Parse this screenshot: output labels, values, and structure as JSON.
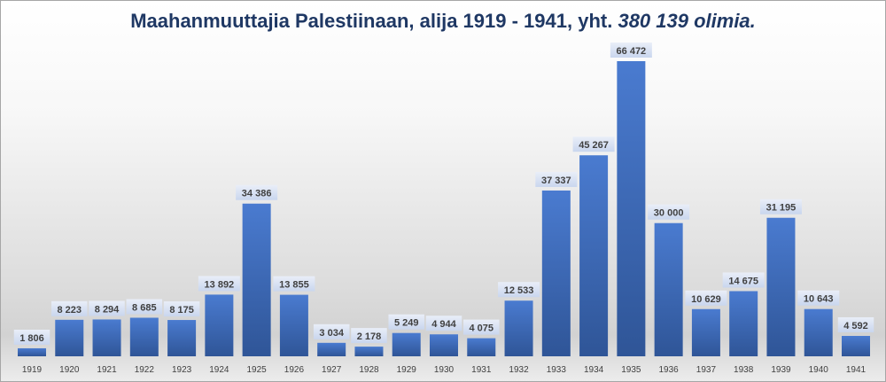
{
  "chart_data": {
    "type": "bar",
    "title": "Maahanmuuttajia Palestiinaan, alija 1919 - 1941, yht.",
    "title_emphasis": "380 139 olimia.",
    "xlabel": "",
    "ylabel": "",
    "ylim": [
      0,
      66472
    ],
    "grid": false,
    "categories": [
      "1919",
      "1920",
      "1921",
      "1922",
      "1923",
      "1924",
      "1925",
      "1926",
      "1927",
      "1928",
      "1929",
      "1930",
      "1931",
      "1932",
      "1933",
      "1934",
      "1935",
      "1936",
      "1937",
      "1938",
      "1939",
      "1940",
      "1941"
    ],
    "values": [
      1806,
      8223,
      8294,
      8685,
      8175,
      13892,
      34386,
      13855,
      3034,
      2178,
      5249,
      4944,
      4075,
      12533,
      37337,
      45267,
      66472,
      30000,
      10629,
      14675,
      31195,
      10643,
      4592
    ],
    "data_labels": [
      "1 806",
      "8 223",
      "8 294",
      "8 685",
      "8 175",
      "13 892",
      "34 386",
      "13 855",
      "3 034",
      "2 178",
      "5 249",
      "4 944",
      "4 075",
      "12 533",
      "37 337",
      "45 267",
      "66 472",
      "30 000",
      "10 629",
      "14 675",
      "31 195",
      "10 643",
      "4 592"
    ],
    "colors": {
      "bar_top": "#4a7bd0",
      "bar_bottom": "#2f5597",
      "title": "#1f3864",
      "label_box": "#dae3f3"
    }
  }
}
